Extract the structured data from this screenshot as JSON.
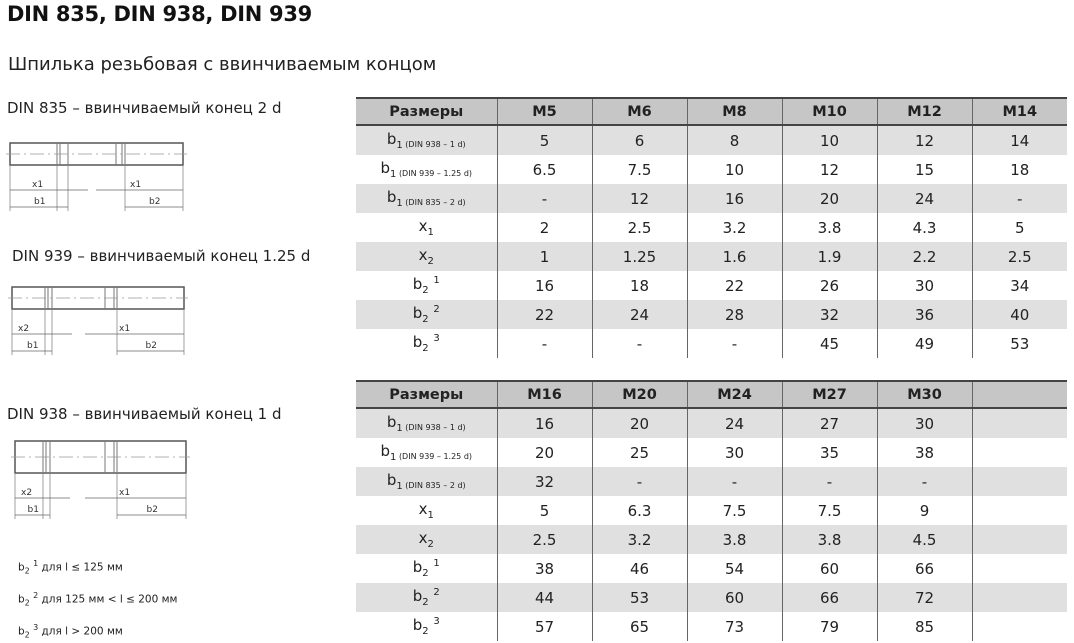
{
  "title": "DIN 835, DIN 938, DIN 939",
  "subtitle": "Шпилька резьбовая с ввинчиваемым концом",
  "drawings": [
    {
      "caption": "DIN 835 – ввинчиваемый конец 2 d",
      "labels": {
        "left_x": "x1",
        "left_b": "b1",
        "right_x": "x1",
        "right_b": "b2"
      }
    },
    {
      "caption": "DIN 939 – ввинчиваемый конец 1.25 d",
      "labels": {
        "left_x": "x2",
        "left_b": "b1",
        "right_x": "x1",
        "right_b": "b2"
      }
    },
    {
      "caption": "DIN 938 – ввинчиваемый конец 1 d",
      "labels": {
        "left_x": "x2",
        "left_b": "b1",
        "right_x": "x1",
        "right_b": "b2"
      }
    }
  ],
  "notes": [
    {
      "sym": "b",
      "sub": "2",
      "sup": "1",
      "text": "для l ≤ 125 мм"
    },
    {
      "sym": "b",
      "sub": "2",
      "sup": "2",
      "text": "для 125 мм < l ≤ 200 мм"
    },
    {
      "sym": "b",
      "sub": "2",
      "sup": "3",
      "text": "для l > 200 мм"
    }
  ],
  "row_labels": [
    {
      "sym": "b",
      "sub": "1",
      "qual": "(DIN 938 – 1 d)"
    },
    {
      "sym": "b",
      "sub": "1",
      "qual": "(DIN 939 – 1.25 d)"
    },
    {
      "sym": "b",
      "sub": "1",
      "qual": "(DIN 835 – 2 d)"
    },
    {
      "sym": "x",
      "sub": "1"
    },
    {
      "sym": "x",
      "sub": "2"
    },
    {
      "sym": "b",
      "sub": "2",
      "sup": "1"
    },
    {
      "sym": "b",
      "sub": "2",
      "sup": "2"
    },
    {
      "sym": "b",
      "sub": "2",
      "sup": "3"
    }
  ],
  "tables": [
    {
      "header": [
        "Размеры",
        "M5",
        "M6",
        "M8",
        "M10",
        "M12",
        "M14"
      ],
      "rows": [
        [
          "5",
          "6",
          "8",
          "10",
          "12",
          "14"
        ],
        [
          "6.5",
          "7.5",
          "10",
          "12",
          "15",
          "18"
        ],
        [
          "-",
          "12",
          "16",
          "20",
          "24",
          "-"
        ],
        [
          "2",
          "2.5",
          "3.2",
          "3.8",
          "4.3",
          "5"
        ],
        [
          "1",
          "1.25",
          "1.6",
          "1.9",
          "2.2",
          "2.5"
        ],
        [
          "16",
          "18",
          "22",
          "26",
          "30",
          "34"
        ],
        [
          "22",
          "24",
          "28",
          "32",
          "36",
          "40"
        ],
        [
          "-",
          "-",
          "-",
          "45",
          "49",
          "53"
        ]
      ]
    },
    {
      "header": [
        "Размеры",
        "M16",
        "M20",
        "M24",
        "M27",
        "M30",
        ""
      ],
      "rows": [
        [
          "16",
          "20",
          "24",
          "27",
          "30",
          ""
        ],
        [
          "20",
          "25",
          "30",
          "35",
          "38",
          ""
        ],
        [
          "32",
          "-",
          "-",
          "-",
          "-",
          ""
        ],
        [
          "5",
          "6.3",
          "7.5",
          "7.5",
          "9",
          ""
        ],
        [
          "2.5",
          "3.2",
          "3.8",
          "3.8",
          "4.5",
          ""
        ],
        [
          "38",
          "46",
          "54",
          "60",
          "66",
          ""
        ],
        [
          "44",
          "53",
          "60",
          "66",
          "72",
          ""
        ],
        [
          "57",
          "65",
          "73",
          "79",
          "85",
          ""
        ]
      ]
    }
  ],
  "colors": {
    "header_bg": "#c6c6c6",
    "stripe_bg": "#e0e0e0",
    "rule": "#444444"
  }
}
